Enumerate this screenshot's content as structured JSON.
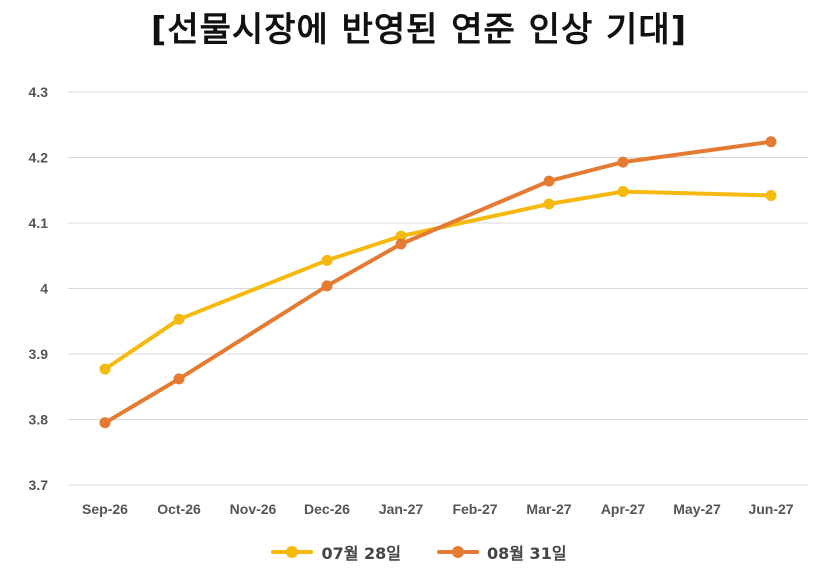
{
  "chart_data": {
    "type": "line",
    "title": "[선물시장에 반영된 연준 인상 기대]",
    "categories": [
      "Sep-26",
      "Oct-26",
      "Nov-26",
      "Dec-26",
      "Jan-27",
      "Feb-27",
      "Mar-27",
      "Apr-27",
      "May-27",
      "Jun-27"
    ],
    "y_ticks": [
      "3.7",
      "3.8",
      "3.9",
      "4",
      "4.1",
      "4.2",
      "4.3"
    ],
    "ylim": [
      3.7,
      4.3
    ],
    "grid": true,
    "legend_position": "bottom",
    "series": [
      {
        "name": "07월 28일",
        "color": "#F5B90F",
        "values": [
          3.877,
          3.953,
          null,
          4.043,
          4.08,
          null,
          4.129,
          4.148,
          null,
          4.142
        ]
      },
      {
        "name": "08월 31일",
        "color": "#E57B32",
        "values": [
          3.795,
          3.862,
          null,
          4.004,
          4.068,
          null,
          4.164,
          4.193,
          null,
          4.224
        ]
      }
    ]
  }
}
